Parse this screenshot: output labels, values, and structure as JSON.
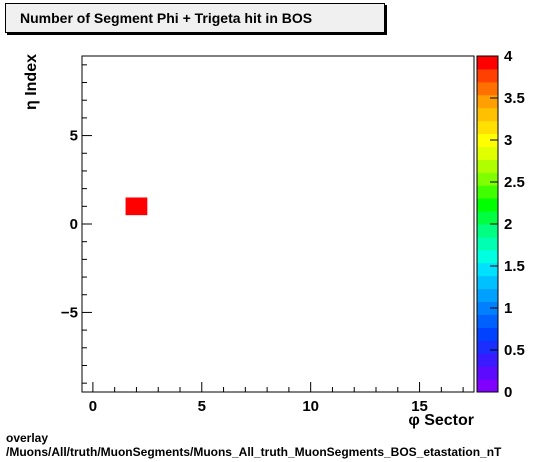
{
  "chart_data": {
    "type": "heatmap",
    "title": "Number of Segment Phi + Trigeta hit in BOS",
    "xlabel": "φ Sector",
    "ylabel": "η Index",
    "xlim": [
      -0.5,
      17.5
    ],
    "ylim": [
      -9.5,
      9.5
    ],
    "x_ticks": [
      0,
      5,
      10,
      15
    ],
    "x_tick_labels": [
      "0",
      "5",
      "10",
      "15"
    ],
    "y_ticks": [
      -5,
      0,
      5
    ],
    "y_tick_labels": [
      "−5",
      "0",
      "5"
    ],
    "cells": [
      {
        "x": 2,
        "y": 1,
        "value": 4
      }
    ],
    "zlim": [
      0,
      4
    ],
    "z_ticks": [
      0,
      0.5,
      1,
      1.5,
      2,
      2.5,
      3,
      3.5,
      4
    ],
    "z_tick_labels": [
      "0",
      "0.5",
      "1",
      "1.5",
      "2",
      "2.5",
      "3",
      "3.5",
      "4"
    ],
    "palette": [
      "#7f00ff",
      "#5c0bff",
      "#3a1aff",
      "#1a2eff",
      "#0042ff",
      "#0061ff",
      "#0080ff",
      "#00a0ff",
      "#00c0ff",
      "#00e0ff",
      "#00ffe0",
      "#00ffb0",
      "#00ff80",
      "#00ff40",
      "#00ff00",
      "#40ff00",
      "#80ff00",
      "#b0ff00",
      "#e0ff00",
      "#ffff00",
      "#ffe000",
      "#ffc000",
      "#ffa000",
      "#ff7000",
      "#ff4000",
      "#ff0000"
    ],
    "grid": false
  },
  "footer": {
    "line1": "overlay",
    "line2": "/Muons/All/truth/MuonSegments/Muons_All_truth_MuonSegments_BOS_etastation_nT"
  }
}
